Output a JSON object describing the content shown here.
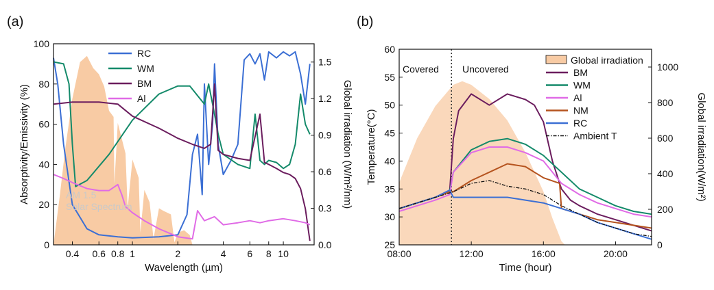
{
  "chart_data": [
    {
      "panel_label": "(a)",
      "type": "line",
      "xscale": "log",
      "xlabel": "Wavelength (µm)",
      "ylabel": "Absorptivity/Emissivity (%)",
      "y2label": "Global irradiation (W/m²/nm)",
      "xlim": [
        0.3,
        16
      ],
      "ylim": [
        0,
        100
      ],
      "y2lim": [
        0,
        1.65
      ],
      "xticks": [
        0.4,
        0.6,
        0.8,
        1,
        2,
        4,
        6,
        8,
        10
      ],
      "xtick_labels": [
        "0.4",
        "0.6",
        "0.8",
        "1",
        "2",
        "4",
        "6",
        "8",
        "10"
      ],
      "yticks": [
        0,
        20,
        40,
        60,
        80,
        100
      ],
      "ytick_labels": [
        "0",
        "20",
        "40",
        "60",
        "80",
        "100"
      ],
      "y2ticks": [
        0.0,
        0.3,
        0.6,
        0.9,
        1.2,
        1.5
      ],
      "y2tick_labels": [
        "0.0",
        "0.3",
        "0.6",
        "0.9",
        "1.2",
        "1.5"
      ],
      "annotation": {
        "text_line1": "AM 1.5",
        "text_line2": "Solar Spectrum"
      },
      "series": [
        {
          "name": "RC",
          "color": "#3b6fd4",
          "x": [
            0.3,
            0.32,
            0.35,
            0.4,
            0.5,
            0.6,
            0.8,
            1.0,
            1.5,
            2.0,
            2.3,
            2.5,
            2.7,
            2.9,
            3.0,
            3.2,
            3.4,
            3.5,
            3.7,
            4.0,
            4.5,
            5.0,
            5.5,
            6.0,
            6.5,
            7.0,
            7.5,
            8.0,
            9.0,
            10.0,
            11.0,
            12.0,
            13.0,
            14.0,
            15.0
          ],
          "values": [
            93,
            80,
            50,
            20,
            8,
            5,
            4,
            3.5,
            4,
            5,
            15,
            45,
            55,
            25,
            80,
            40,
            60,
            90,
            50,
            35,
            42,
            50,
            92,
            95,
            90,
            95,
            82,
            96,
            93,
            96,
            94,
            96,
            85,
            70,
            90
          ]
        },
        {
          "name": "WM",
          "color": "#148a6a",
          "x": [
            0.3,
            0.35,
            0.38,
            0.4,
            0.42,
            0.5,
            0.7,
            1.0,
            1.5,
            2.0,
            2.4,
            3.0,
            3.2,
            3.5,
            3.7,
            4.0,
            5.0,
            6.0,
            6.5,
            7.0,
            7.5,
            8.0,
            9.0,
            10.0,
            11.0,
            12.0,
            13.0,
            14.0,
            15.0
          ],
          "values": [
            91,
            90,
            80,
            50,
            29,
            32,
            45,
            62,
            75,
            79,
            79,
            70,
            80,
            65,
            55,
            45,
            40,
            38,
            65,
            42,
            40,
            42,
            41,
            38,
            40,
            50,
            75,
            60,
            55
          ]
        },
        {
          "name": "BM",
          "color": "#6b1d5e",
          "x": [
            0.3,
            0.4,
            0.6,
            0.8,
            1.0,
            1.5,
            2.0,
            2.5,
            3.0,
            3.3,
            3.5,
            3.7,
            4.0,
            5.0,
            6.0,
            7.0,
            7.5,
            8.0,
            9.0,
            10.0,
            11.0,
            12.0,
            13.0,
            14.0,
            15.0
          ],
          "values": [
            70,
            71,
            71,
            70,
            64,
            58,
            53,
            50,
            48,
            50,
            80,
            47,
            45,
            43,
            42,
            65,
            41,
            40,
            38,
            36,
            35,
            33,
            28,
            18,
            2
          ]
        },
        {
          "name": "Al",
          "color": "#e06be6",
          "x": [
            0.3,
            0.35,
            0.4,
            0.5,
            0.6,
            0.7,
            0.8,
            0.85,
            0.9,
            1.0,
            1.2,
            1.5,
            2.0,
            2.5,
            2.7,
            3.0,
            3.5,
            4.0,
            5.0,
            6.0,
            7.0,
            8.0,
            10.0,
            12.0,
            14.0,
            15.0
          ],
          "values": [
            35,
            33,
            31,
            28,
            27,
            27,
            30,
            25,
            19,
            16,
            12,
            8,
            4,
            3,
            17,
            12,
            14,
            10,
            11,
            12,
            11,
            12,
            13,
            12,
            11,
            10
          ]
        }
      ],
      "background_series": {
        "name": "AM 1.5 Solar Spectrum",
        "color": "#f8cba4",
        "x": [
          0.3,
          0.33,
          0.36,
          0.4,
          0.45,
          0.5,
          0.55,
          0.6,
          0.65,
          0.7,
          0.75,
          0.76,
          0.8,
          0.9,
          0.93,
          1.0,
          1.1,
          1.13,
          1.2,
          1.3,
          1.38,
          1.5,
          1.6,
          1.8,
          1.9,
          2.0,
          2.2,
          2.4,
          2.5
        ],
        "values": [
          0.0,
          0.4,
          0.8,
          1.2,
          1.5,
          1.55,
          1.45,
          1.4,
          1.3,
          1.1,
          1.05,
          0.5,
          1.0,
          0.75,
          0.3,
          0.7,
          0.55,
          0.1,
          0.45,
          0.35,
          0.05,
          0.3,
          0.28,
          0.25,
          0.02,
          0.1,
          0.12,
          0.08,
          0.0
        ]
      },
      "legend_position": "top-center"
    },
    {
      "panel_label": "(b)",
      "type": "line",
      "xlabel": "Time (hour)",
      "ylabel": "Temperature(°C)",
      "y2label": "Global irradiation(W/m²)",
      "xlim": [
        8,
        22
      ],
      "ylim": [
        25,
        60
      ],
      "y2lim": [
        0,
        1100
      ],
      "xticks": [
        8,
        12,
        16,
        20
      ],
      "xtick_labels": [
        "08:00",
        "12:00",
        "16:00",
        "20:00"
      ],
      "yticks": [
        25,
        30,
        35,
        40,
        45,
        50,
        55,
        60
      ],
      "ytick_labels": [
        "25",
        "30",
        "35",
        "40",
        "45",
        "50",
        "55",
        "60"
      ],
      "y2ticks": [
        0,
        200,
        400,
        600,
        800,
        1000
      ],
      "y2tick_labels": [
        "0",
        "200",
        "400",
        "600",
        "800",
        "1000"
      ],
      "annotations": {
        "covered": "Covered",
        "uncovered": "Uncovered"
      },
      "divider_time": 10.9,
      "series": [
        {
          "name": "BM",
          "color": "#6b1d5e",
          "x": [
            8,
            9,
            10,
            10.8,
            11,
            11.3,
            12,
            13,
            14,
            15,
            15.5,
            16,
            16.5,
            17,
            17.5,
            18,
            19,
            20,
            21,
            22
          ],
          "values": [
            31.5,
            32.5,
            33.5,
            34.5,
            44,
            49,
            52,
            50,
            52,
            51,
            50,
            47,
            40,
            35,
            33,
            32,
            30.5,
            29.5,
            28.5,
            27.5
          ]
        },
        {
          "name": "WM",
          "color": "#148a6a",
          "x": [
            8,
            9,
            10,
            10.8,
            11,
            12,
            13,
            14,
            15,
            16,
            17,
            18,
            19,
            20,
            21,
            22
          ],
          "values": [
            31.5,
            32.5,
            33.5,
            34.5,
            38,
            42,
            43.5,
            44,
            43,
            41,
            38,
            35,
            33.5,
            32,
            31,
            30.5
          ]
        },
        {
          "name": "Al",
          "color": "#e06be6",
          "x": [
            8,
            9,
            10,
            10.8,
            11,
            12,
            13,
            14,
            15,
            16,
            17,
            18,
            19,
            20,
            21,
            22
          ],
          "values": [
            31,
            32,
            33,
            34,
            38,
            41.5,
            42.5,
            42.5,
            41.5,
            40,
            36,
            34,
            32.5,
            31.5,
            30.5,
            30
          ]
        },
        {
          "name": "NM",
          "color": "#b5531e",
          "x": [
            8,
            9,
            10,
            10.8,
            11,
            12,
            13,
            14,
            15,
            16,
            16.9,
            17,
            18,
            19,
            20,
            21,
            22
          ],
          "values": [
            31.5,
            32.5,
            33.5,
            34.5,
            34.5,
            36.5,
            38,
            39.5,
            39,
            37,
            36,
            31.5,
            30.5,
            29.5,
            29,
            28.5,
            28
          ]
        },
        {
          "name": "RC",
          "color": "#3b6fd4",
          "x": [
            8,
            9,
            10,
            10.8,
            11,
            12,
            13,
            14,
            15,
            16,
            17,
            18,
            19,
            20,
            21,
            22
          ],
          "values": [
            31.5,
            32.5,
            33.5,
            34.8,
            33.5,
            33.5,
            33.5,
            33.5,
            33,
            32.5,
            31.5,
            30.5,
            29,
            28,
            27,
            26
          ]
        },
        {
          "name": "Ambient T",
          "color": "#111111",
          "dashed": true,
          "x": [
            8,
            9,
            10,
            11,
            12,
            13,
            14,
            15,
            16,
            17,
            18,
            19,
            20,
            21,
            22
          ],
          "values": [
            31.5,
            32.5,
            33.5,
            34.5,
            36,
            36.5,
            35.5,
            35,
            34,
            32,
            30.5,
            29,
            28,
            27,
            26.5
          ]
        }
      ],
      "background_series": {
        "name": "Global irradiation",
        "color": "#f8cba4",
        "x": [
          8,
          9,
          10,
          11,
          11.5,
          12,
          13,
          14,
          15,
          16,
          16.5,
          17,
          17.2
        ],
        "values": [
          350,
          600,
          780,
          900,
          920,
          900,
          820,
          700,
          520,
          300,
          150,
          20,
          0
        ]
      },
      "legend_position": "top-right"
    }
  ]
}
